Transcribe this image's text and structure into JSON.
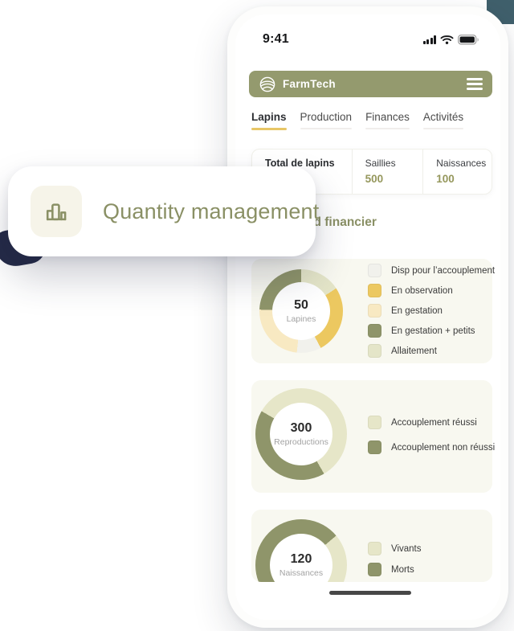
{
  "status_bar": {
    "time": "9:41"
  },
  "header": {
    "app_name": "FarmTech"
  },
  "tabs": [
    {
      "label": "Lapins",
      "active": true
    },
    {
      "label": "Production",
      "active": false
    },
    {
      "label": "Finances",
      "active": false
    },
    {
      "label": "Activités",
      "active": false
    }
  ],
  "stats_card": {
    "columns": [
      {
        "label": "Total de lapins",
        "value": ""
      },
      {
        "label": "Saillies",
        "value": "500"
      },
      {
        "label": "Naissances",
        "value": "100"
      }
    ]
  },
  "overlay": {
    "title": "Quantity management",
    "icon": "bar-chart-icon"
  },
  "section_heading": "Dashboard financier",
  "colors": {
    "brand_olive": "#949a6e",
    "olive_text": "#8a9065",
    "accent_yellow": "#e8c666",
    "card_beige": "#f8f8f0",
    "navy": "#242a47",
    "teal_corner": "#40606c"
  },
  "chart_data": [
    {
      "type": "pie",
      "center_value": "50",
      "center_label": "Lapines",
      "segments": [
        {
          "label": "Allaitement",
          "color": "#e4e5c8",
          "start_deg": 0,
          "end_deg": 57,
          "percent": 16
        },
        {
          "label": "En observation",
          "color": "#ecc860",
          "start_deg": 57,
          "end_deg": 152,
          "percent": 26
        },
        {
          "label": "Disp pour l’accouplement",
          "color": "#f1f1ec",
          "start_deg": 152,
          "end_deg": 186,
          "percent": 9
        },
        {
          "label": "En gestation",
          "color": "#f8e9c2",
          "start_deg": 186,
          "end_deg": 272,
          "percent": 24
        },
        {
          "label": "En gestation + petits",
          "color": "#8f956a",
          "start_deg": 272,
          "end_deg": 360,
          "percent": 25
        }
      ],
      "legend": [
        {
          "label": "Disp pour l’accouplement",
          "color": "#f1f1ec"
        },
        {
          "label": "En observation",
          "color": "#ecc860"
        },
        {
          "label": "En gestation",
          "color": "#f8e9c2"
        },
        {
          "label": "En gestation + petits",
          "color": "#8f956a"
        },
        {
          "label": "Allaitement",
          "color": "#e4e5c8"
        }
      ]
    },
    {
      "type": "pie",
      "center_value": "300",
      "center_label": "Reproductions",
      "segments": [
        {
          "label": "Accouplement réussi",
          "color": "#e6e6c8",
          "start_deg": 0,
          "end_deg": 150,
          "percent": 42
        },
        {
          "label": "Accouplement non réussi",
          "color": "#8f956a",
          "start_deg": 150,
          "end_deg": 300,
          "percent": 42
        },
        {
          "label": "Accouplement réussi",
          "color": "#e6e6c8",
          "start_deg": 300,
          "end_deg": 360,
          "percent": 16
        }
      ],
      "legend": [
        {
          "label": "Accouplement réussi",
          "color": "#e6e6c8"
        },
        {
          "label": "Accouplement non réussi",
          "color": "#8f956a"
        }
      ]
    },
    {
      "type": "pie",
      "center_value": "120",
      "center_label": "Naissances",
      "segments": [
        {
          "label": "Morts",
          "color": "#8f956a",
          "start_deg": 0,
          "end_deg": 50,
          "percent": 14
        },
        {
          "label": "Vivants",
          "color": "#e6e6c8",
          "start_deg": 50,
          "end_deg": 232,
          "percent": 51
        },
        {
          "label": "Morts",
          "color": "#8f956a",
          "start_deg": 232,
          "end_deg": 360,
          "percent": 35
        }
      ],
      "legend": [
        {
          "label": "Vivants",
          "color": "#e6e6c8"
        },
        {
          "label": "Morts",
          "color": "#8f956a"
        }
      ]
    }
  ]
}
